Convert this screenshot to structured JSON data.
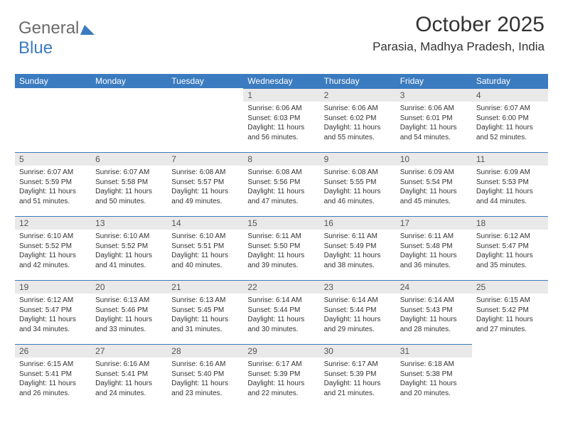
{
  "logo": {
    "text1": "General",
    "text2": "Blue",
    "triangle_color": "#3b7bbf"
  },
  "header": {
    "month_title": "October 2025",
    "location": "Parasia, Madhya Pradesh, India"
  },
  "colors": {
    "header_bg": "#3b7bbf",
    "header_fg": "#ffffff",
    "daynum_bg": "#e9e9e9",
    "daynum_border": "#3b7bbf",
    "text": "#333333"
  },
  "weekdays": [
    "Sunday",
    "Monday",
    "Tuesday",
    "Wednesday",
    "Thursday",
    "Friday",
    "Saturday"
  ],
  "blank_leading": 3,
  "days": [
    {
      "n": "1",
      "sr": "6:06 AM",
      "ss": "6:03 PM",
      "dl": "11 hours and 56 minutes."
    },
    {
      "n": "2",
      "sr": "6:06 AM",
      "ss": "6:02 PM",
      "dl": "11 hours and 55 minutes."
    },
    {
      "n": "3",
      "sr": "6:06 AM",
      "ss": "6:01 PM",
      "dl": "11 hours and 54 minutes."
    },
    {
      "n": "4",
      "sr": "6:07 AM",
      "ss": "6:00 PM",
      "dl": "11 hours and 52 minutes."
    },
    {
      "n": "5",
      "sr": "6:07 AM",
      "ss": "5:59 PM",
      "dl": "11 hours and 51 minutes."
    },
    {
      "n": "6",
      "sr": "6:07 AM",
      "ss": "5:58 PM",
      "dl": "11 hours and 50 minutes."
    },
    {
      "n": "7",
      "sr": "6:08 AM",
      "ss": "5:57 PM",
      "dl": "11 hours and 49 minutes."
    },
    {
      "n": "8",
      "sr": "6:08 AM",
      "ss": "5:56 PM",
      "dl": "11 hours and 47 minutes."
    },
    {
      "n": "9",
      "sr": "6:08 AM",
      "ss": "5:55 PM",
      "dl": "11 hours and 46 minutes."
    },
    {
      "n": "10",
      "sr": "6:09 AM",
      "ss": "5:54 PM",
      "dl": "11 hours and 45 minutes."
    },
    {
      "n": "11",
      "sr": "6:09 AM",
      "ss": "5:53 PM",
      "dl": "11 hours and 44 minutes."
    },
    {
      "n": "12",
      "sr": "6:10 AM",
      "ss": "5:52 PM",
      "dl": "11 hours and 42 minutes."
    },
    {
      "n": "13",
      "sr": "6:10 AM",
      "ss": "5:52 PM",
      "dl": "11 hours and 41 minutes."
    },
    {
      "n": "14",
      "sr": "6:10 AM",
      "ss": "5:51 PM",
      "dl": "11 hours and 40 minutes."
    },
    {
      "n": "15",
      "sr": "6:11 AM",
      "ss": "5:50 PM",
      "dl": "11 hours and 39 minutes."
    },
    {
      "n": "16",
      "sr": "6:11 AM",
      "ss": "5:49 PM",
      "dl": "11 hours and 38 minutes."
    },
    {
      "n": "17",
      "sr": "6:11 AM",
      "ss": "5:48 PM",
      "dl": "11 hours and 36 minutes."
    },
    {
      "n": "18",
      "sr": "6:12 AM",
      "ss": "5:47 PM",
      "dl": "11 hours and 35 minutes."
    },
    {
      "n": "19",
      "sr": "6:12 AM",
      "ss": "5:47 PM",
      "dl": "11 hours and 34 minutes."
    },
    {
      "n": "20",
      "sr": "6:13 AM",
      "ss": "5:46 PM",
      "dl": "11 hours and 33 minutes."
    },
    {
      "n": "21",
      "sr": "6:13 AM",
      "ss": "5:45 PM",
      "dl": "11 hours and 31 minutes."
    },
    {
      "n": "22",
      "sr": "6:14 AM",
      "ss": "5:44 PM",
      "dl": "11 hours and 30 minutes."
    },
    {
      "n": "23",
      "sr": "6:14 AM",
      "ss": "5:44 PM",
      "dl": "11 hours and 29 minutes."
    },
    {
      "n": "24",
      "sr": "6:14 AM",
      "ss": "5:43 PM",
      "dl": "11 hours and 28 minutes."
    },
    {
      "n": "25",
      "sr": "6:15 AM",
      "ss": "5:42 PM",
      "dl": "11 hours and 27 minutes."
    },
    {
      "n": "26",
      "sr": "6:15 AM",
      "ss": "5:41 PM",
      "dl": "11 hours and 26 minutes."
    },
    {
      "n": "27",
      "sr": "6:16 AM",
      "ss": "5:41 PM",
      "dl": "11 hours and 24 minutes."
    },
    {
      "n": "28",
      "sr": "6:16 AM",
      "ss": "5:40 PM",
      "dl": "11 hours and 23 minutes."
    },
    {
      "n": "29",
      "sr": "6:17 AM",
      "ss": "5:39 PM",
      "dl": "11 hours and 22 minutes."
    },
    {
      "n": "30",
      "sr": "6:17 AM",
      "ss": "5:39 PM",
      "dl": "11 hours and 21 minutes."
    },
    {
      "n": "31",
      "sr": "6:18 AM",
      "ss": "5:38 PM",
      "dl": "11 hours and 20 minutes."
    }
  ],
  "labels": {
    "sunrise": "Sunrise: ",
    "sunset": "Sunset: ",
    "daylight": "Daylight: "
  }
}
